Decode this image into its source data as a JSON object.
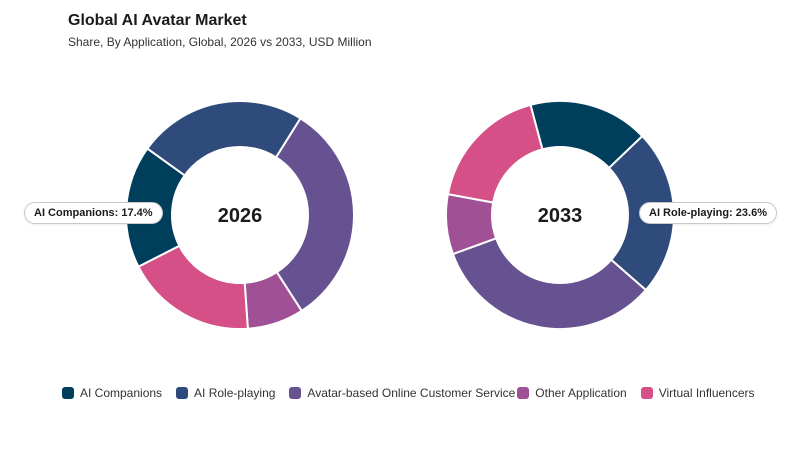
{
  "header": {
    "title": "Global AI Avatar Market",
    "subtitle": "Share, By Application, Global, 2026 vs 2033, USD Million"
  },
  "colors": {
    "AI Companions": "#003f5c",
    "AI Role-playing": "#2f4b7c",
    "Avatar-based Online Customer Service": "#665191",
    "Other Application": "#a05195",
    "Virtual Influencers": "#d45087"
  },
  "chart_data": [
    {
      "type": "pie",
      "center_label": "2026",
      "categories": [
        "AI Companions",
        "AI Role-playing",
        "Avatar-based Online Customer Service",
        "Other Application",
        "Virtual Influencers"
      ],
      "values": [
        17.4,
        24.0,
        32.0,
        8.0,
        18.6
      ],
      "callout": "AI Companions: 17.4%"
    },
    {
      "type": "pie",
      "center_label": "2033",
      "categories": [
        "AI Companions",
        "AI Role-playing",
        "Avatar-based Online Customer Service",
        "Other Application",
        "Virtual Influencers"
      ],
      "values": [
        17.0,
        23.6,
        33.0,
        8.5,
        17.9
      ],
      "callout": "AI Role-playing: 23.6%"
    }
  ],
  "legend": {
    "items": [
      "AI Companions",
      "AI Role-playing",
      "Avatar-based Online Customer Service",
      "Other Application",
      "Virtual Influencers"
    ]
  }
}
